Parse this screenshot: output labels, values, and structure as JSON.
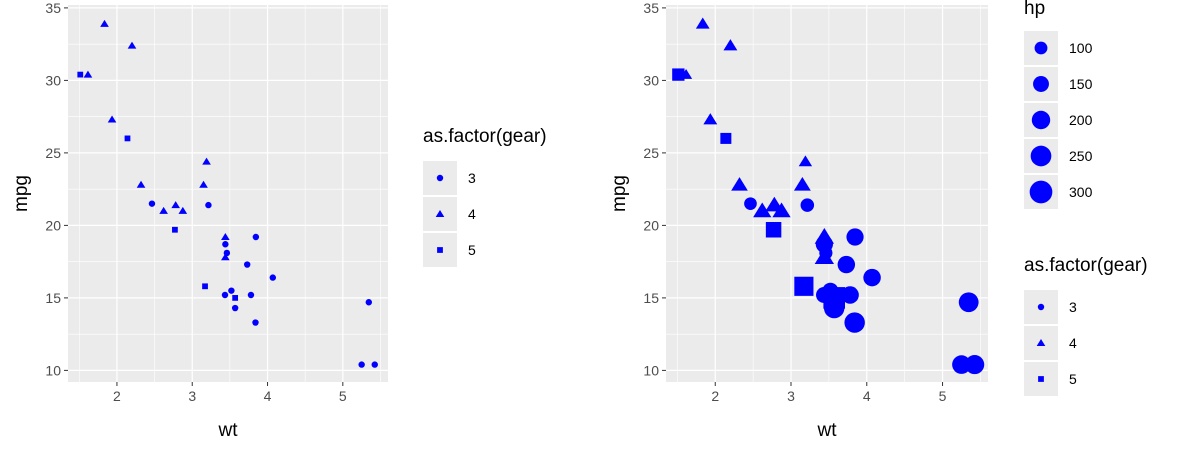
{
  "chart_data": [
    {
      "type": "scatter",
      "xlabel": "wt",
      "ylabel": "mpg",
      "xlim": [
        1.35,
        5.6
      ],
      "ylim": [
        9.2,
        35.2
      ],
      "xticks": [
        2,
        3,
        4,
        5
      ],
      "yticks": [
        10,
        15,
        20,
        25,
        30,
        35
      ],
      "grid": true,
      "marker_color": "#0000FF",
      "panel_color": "#EBEBEB",
      "legend_position": "right",
      "legends": [
        {
          "title": "as.factor(gear)",
          "entries": [
            {
              "label": "3",
              "shape": "circle"
            },
            {
              "label": "4",
              "shape": "triangle"
            },
            {
              "label": "5",
              "shape": "square"
            }
          ]
        }
      ],
      "points": [
        {
          "wt": 1.835,
          "mpg": 33.9,
          "gear": "4"
        },
        {
          "wt": 2.2,
          "mpg": 32.4,
          "gear": "4"
        },
        {
          "wt": 1.615,
          "mpg": 30.4,
          "gear": "4"
        },
        {
          "wt": 1.513,
          "mpg": 30.4,
          "gear": "5"
        },
        {
          "wt": 1.935,
          "mpg": 27.3,
          "gear": "4"
        },
        {
          "wt": 2.14,
          "mpg": 26.0,
          "gear": "5"
        },
        {
          "wt": 3.19,
          "mpg": 24.4,
          "gear": "4"
        },
        {
          "wt": 2.32,
          "mpg": 22.8,
          "gear": "4"
        },
        {
          "wt": 3.15,
          "mpg": 22.8,
          "gear": "4"
        },
        {
          "wt": 3.215,
          "mpg": 21.4,
          "gear": "3"
        },
        {
          "wt": 2.465,
          "mpg": 21.5,
          "gear": "3"
        },
        {
          "wt": 2.78,
          "mpg": 21.4,
          "gear": "4"
        },
        {
          "wt": 2.62,
          "mpg": 21.0,
          "gear": "4"
        },
        {
          "wt": 2.875,
          "mpg": 21.0,
          "gear": "4"
        },
        {
          "wt": 2.77,
          "mpg": 19.7,
          "gear": "5"
        },
        {
          "wt": 3.44,
          "mpg": 19.2,
          "gear": "4"
        },
        {
          "wt": 3.845,
          "mpg": 19.2,
          "gear": "3"
        },
        {
          "wt": 3.44,
          "mpg": 18.7,
          "gear": "3"
        },
        {
          "wt": 3.46,
          "mpg": 18.1,
          "gear": "3"
        },
        {
          "wt": 3.44,
          "mpg": 17.8,
          "gear": "4"
        },
        {
          "wt": 3.73,
          "mpg": 17.3,
          "gear": "3"
        },
        {
          "wt": 4.07,
          "mpg": 16.4,
          "gear": "3"
        },
        {
          "wt": 3.17,
          "mpg": 15.8,
          "gear": "5"
        },
        {
          "wt": 3.52,
          "mpg": 15.5,
          "gear": "3"
        },
        {
          "wt": 3.435,
          "mpg": 15.2,
          "gear": "3"
        },
        {
          "wt": 3.78,
          "mpg": 15.2,
          "gear": "3"
        },
        {
          "wt": 3.57,
          "mpg": 15.0,
          "gear": "5"
        },
        {
          "wt": 5.345,
          "mpg": 14.7,
          "gear": "3"
        },
        {
          "wt": 3.57,
          "mpg": 14.3,
          "gear": "3"
        },
        {
          "wt": 3.84,
          "mpg": 13.3,
          "gear": "3"
        },
        {
          "wt": 5.25,
          "mpg": 10.4,
          "gear": "3"
        },
        {
          "wt": 5.424,
          "mpg": 10.4,
          "gear": "3"
        }
      ]
    },
    {
      "type": "scatter",
      "xlabel": "wt",
      "ylabel": "mpg",
      "xlim": [
        1.35,
        5.6
      ],
      "ylim": [
        9.2,
        35.2
      ],
      "xticks": [
        2,
        3,
        4,
        5
      ],
      "yticks": [
        10,
        15,
        20,
        25,
        30,
        35
      ],
      "grid": true,
      "marker_color": "#0000FF",
      "panel_color": "#EBEBEB",
      "legend_position": "right",
      "size_range": [
        52,
        335
      ],
      "legends": [
        {
          "title": "hp",
          "entries": [
            {
              "label": "100",
              "value": 100,
              "shape": "circle"
            },
            {
              "label": "150",
              "value": 150,
              "shape": "circle"
            },
            {
              "label": "200",
              "value": 200,
              "shape": "circle"
            },
            {
              "label": "250",
              "value": 250,
              "shape": "circle"
            },
            {
              "label": "300",
              "value": 300,
              "shape": "circle"
            }
          ]
        },
        {
          "title": "as.factor(gear)",
          "entries": [
            {
              "label": "3",
              "shape": "circle"
            },
            {
              "label": "4",
              "shape": "triangle"
            },
            {
              "label": "5",
              "shape": "square"
            }
          ]
        }
      ],
      "points": [
        {
          "wt": 2.62,
          "mpg": 21.0,
          "gear": "4",
          "hp": 110
        },
        {
          "wt": 2.875,
          "mpg": 21.0,
          "gear": "4",
          "hp": 110
        },
        {
          "wt": 2.32,
          "mpg": 22.8,
          "gear": "4",
          "hp": 93
        },
        {
          "wt": 3.215,
          "mpg": 21.4,
          "gear": "3",
          "hp": 110
        },
        {
          "wt": 3.44,
          "mpg": 18.7,
          "gear": "3",
          "hp": 175
        },
        {
          "wt": 3.46,
          "mpg": 18.1,
          "gear": "3",
          "hp": 105
        },
        {
          "wt": 3.57,
          "mpg": 14.3,
          "gear": "3",
          "hp": 245
        },
        {
          "wt": 3.19,
          "mpg": 24.4,
          "gear": "4",
          "hp": 62
        },
        {
          "wt": 3.15,
          "mpg": 22.8,
          "gear": "4",
          "hp": 95
        },
        {
          "wt": 3.44,
          "mpg": 19.2,
          "gear": "4",
          "hp": 123
        },
        {
          "wt": 3.44,
          "mpg": 17.8,
          "gear": "4",
          "hp": 123
        },
        {
          "wt": 4.07,
          "mpg": 16.4,
          "gear": "3",
          "hp": 180
        },
        {
          "wt": 3.73,
          "mpg": 17.3,
          "gear": "3",
          "hp": 180
        },
        {
          "wt": 3.78,
          "mpg": 15.2,
          "gear": "3",
          "hp": 180
        },
        {
          "wt": 5.25,
          "mpg": 10.4,
          "gear": "3",
          "hp": 205
        },
        {
          "wt": 5.424,
          "mpg": 10.4,
          "gear": "3",
          "hp": 215
        },
        {
          "wt": 5.345,
          "mpg": 14.7,
          "gear": "3",
          "hp": 230
        },
        {
          "wt": 2.2,
          "mpg": 32.4,
          "gear": "4",
          "hp": 66
        },
        {
          "wt": 1.615,
          "mpg": 30.4,
          "gear": "4",
          "hp": 52
        },
        {
          "wt": 1.835,
          "mpg": 33.9,
          "gear": "4",
          "hp": 65
        },
        {
          "wt": 2.465,
          "mpg": 21.5,
          "gear": "3",
          "hp": 97
        },
        {
          "wt": 3.52,
          "mpg": 15.5,
          "gear": "3",
          "hp": 150
        },
        {
          "wt": 3.435,
          "mpg": 15.2,
          "gear": "3",
          "hp": 150
        },
        {
          "wt": 3.84,
          "mpg": 13.3,
          "gear": "3",
          "hp": 245
        },
        {
          "wt": 3.845,
          "mpg": 19.2,
          "gear": "3",
          "hp": 175
        },
        {
          "wt": 1.935,
          "mpg": 27.3,
          "gear": "4",
          "hp": 66
        },
        {
          "wt": 2.14,
          "mpg": 26.0,
          "gear": "5",
          "hp": 91
        },
        {
          "wt": 1.513,
          "mpg": 30.4,
          "gear": "5",
          "hp": 113
        },
        {
          "wt": 3.17,
          "mpg": 15.8,
          "gear": "5",
          "hp": 264
        },
        {
          "wt": 2.77,
          "mpg": 19.7,
          "gear": "5",
          "hp": 175
        },
        {
          "wt": 3.57,
          "mpg": 15.0,
          "gear": "5",
          "hp": 335
        },
        {
          "wt": 2.78,
          "mpg": 21.4,
          "gear": "4",
          "hp": 109
        }
      ]
    }
  ]
}
